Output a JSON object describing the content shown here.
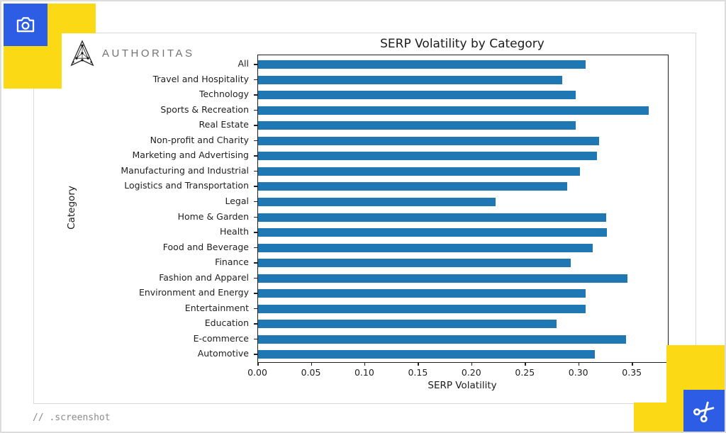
{
  "decor": {
    "accent_blue": "#2d5ce5",
    "accent_yellow": "#fbd914",
    "camera_icon": "camera-icon",
    "scissors_icon": "scissors-icon"
  },
  "brand": {
    "name": "AUTHORITAS",
    "logo_icon": "authoritas-triangle-logo"
  },
  "footer": {
    "caption": "// .screenshot"
  },
  "chart_data": {
    "type": "bar",
    "orientation": "horizontal",
    "title": "SERP Volatility by Category",
    "xlabel": "SERP Volatility",
    "ylabel": "Category",
    "categories": [
      "All",
      "Travel and Hospitality",
      "Technology",
      "Sports & Recreation",
      "Real Estate",
      "Non-profit and Charity",
      "Marketing and Advertising",
      "Manufacturing and Industrial",
      "Logistics and Transportation",
      "Legal",
      "Home & Garden",
      "Health",
      "Food and Beverage",
      "Finance",
      "Fashion and Apparel",
      "Environment and Energy",
      "Entertainment",
      "Education",
      "E-commerce",
      "Automotive"
    ],
    "values": [
      0.306,
      0.284,
      0.297,
      0.365,
      0.297,
      0.319,
      0.317,
      0.301,
      0.289,
      0.222,
      0.325,
      0.326,
      0.313,
      0.292,
      0.345,
      0.306,
      0.306,
      0.279,
      0.344,
      0.315
    ],
    "xlim": [
      0,
      0.383
    ],
    "xticks": [
      0,
      0.05,
      0.1,
      0.15,
      0.2,
      0.25,
      0.3,
      0.35
    ],
    "xtick_labels": [
      "0.00",
      "0.05",
      "0.10",
      "0.15",
      "0.20",
      "0.25",
      "0.30",
      "0.35"
    ],
    "bar_color": "#1f77b4",
    "grid": false,
    "legend": null
  }
}
